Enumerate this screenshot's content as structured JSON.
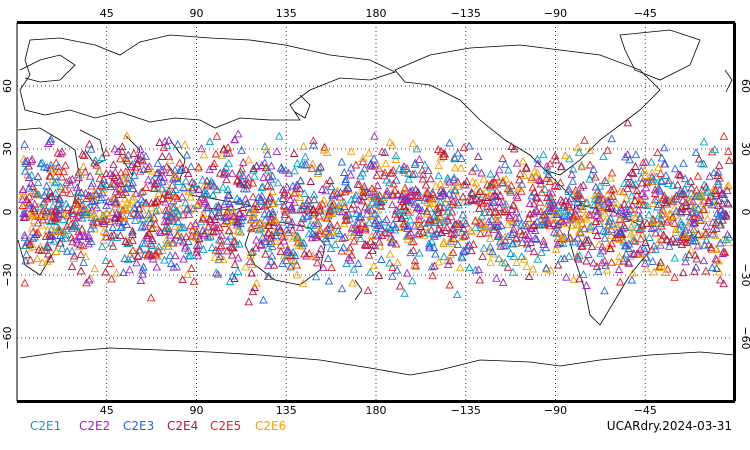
{
  "map": {
    "lon_ticks": [
      "45",
      "90",
      "135",
      "180",
      "−135",
      "−90",
      "−45"
    ],
    "lat_ticks_left": [
      "60",
      "30",
      "0",
      "−30",
      "−60"
    ],
    "lat_ticks_right": [
      "60",
      "30",
      "0",
      "−30",
      "−60"
    ],
    "lon_tick_values": [
      45,
      90,
      135,
      180,
      225,
      270,
      315
    ],
    "lat_tick_values": [
      60,
      30,
      0,
      -30,
      -60
    ],
    "lon_range": [
      0,
      360
    ],
    "lat_range": [
      -90,
      90
    ],
    "obs_lat_range": [
      -45,
      45
    ],
    "marker": "open-triangle",
    "grid": "dotted"
  },
  "legend": {
    "items": [
      {
        "label": "C2E1",
        "color": "#00a0c8"
      },
      {
        "label": "C2E2",
        "color": "#a020c0"
      },
      {
        "label": "C2E3",
        "color": "#1e64e6"
      },
      {
        "label": "C2E4",
        "color": "#b4143c"
      },
      {
        "label": "C2E5",
        "color": "#e61e1e"
      },
      {
        "label": "C2E6",
        "color": "#f0a000"
      }
    ]
  },
  "stamp": "UCARdry.2024-03-31"
}
